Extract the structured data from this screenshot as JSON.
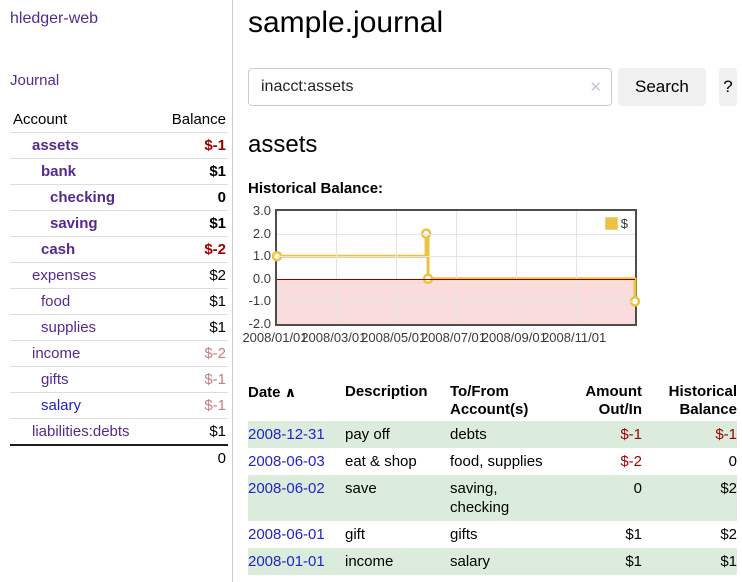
{
  "app_title": "hledger-web",
  "sidebar": {
    "journal_link": "Journal",
    "accounts_table": {
      "account_header": "Account",
      "balance_header": "Balance",
      "rows": [
        {
          "name": "assets",
          "balance": "$-1",
          "level": 1,
          "selected": true,
          "negative": true
        },
        {
          "name": "bank",
          "balance": "$1",
          "level": 2,
          "selected": true,
          "negative": false
        },
        {
          "name": "checking",
          "balance": "0",
          "level": 3,
          "selected": true,
          "negative": false
        },
        {
          "name": "saving",
          "balance": "$1",
          "level": 3,
          "selected": true,
          "negative": false
        },
        {
          "name": "cash",
          "balance": "$-2",
          "level": 2,
          "selected": true,
          "negative": true
        },
        {
          "name": "expenses",
          "balance": "$2",
          "level": 1,
          "selected": false,
          "negative": false
        },
        {
          "name": "food",
          "balance": "$1",
          "level": 2,
          "selected": false,
          "negative": false
        },
        {
          "name": "supplies",
          "balance": "$1",
          "level": 2,
          "selected": false,
          "negative": false
        },
        {
          "name": "income",
          "balance": "$-2",
          "level": 1,
          "selected": false,
          "negative": true
        },
        {
          "name": "gifts",
          "balance": "$-1",
          "level": 2,
          "selected": false,
          "negative": true
        },
        {
          "name": "salary",
          "balance": "$-1",
          "level": 2,
          "selected": false,
          "negative": true,
          "link_variant": "blue"
        },
        {
          "name": "liabilities:debts",
          "balance": "$1",
          "level": 1,
          "selected": false,
          "negative": false
        }
      ],
      "total": "0"
    }
  },
  "main": {
    "title": "sample.journal",
    "search": {
      "value": "inacct:assets",
      "clear_icon": "✕",
      "search_button": "Search",
      "help_button": "?"
    },
    "account_heading": "assets",
    "chart_label": "Historical Balance:"
  },
  "chart_data": {
    "type": "line",
    "title": "Historical Balance",
    "step": true,
    "series_name": "$",
    "x": [
      "2008-01-01",
      "2008-06-01",
      "2008-06-03",
      "2008-12-31"
    ],
    "y": [
      1,
      2,
      0,
      -1
    ],
    "xlim": [
      "2008-01-01",
      "2008-12-31"
    ],
    "ylim": [
      -2,
      3
    ],
    "y_ticks": [
      "3.0",
      "2.0",
      "1.0",
      "0.0",
      "-1.0",
      "-2.0"
    ],
    "y_tick_values": [
      3,
      2,
      1,
      0,
      -1,
      -2
    ],
    "x_tick_labels": [
      "2008/01/01",
      "2008/03/01",
      "2008/05/01",
      "2008/07/01",
      "2008/09/01",
      "2008/11/01"
    ],
    "x_tick_dates": [
      "2008-01-01",
      "2008-03-01",
      "2008-05-01",
      "2008-07-01",
      "2008-09-01",
      "2008-11-01"
    ],
    "line_color": "#edc240",
    "negative_fill": "#fbdcdc",
    "zero_line_color": "#8b0000",
    "grid": true,
    "legend": {
      "label": "$",
      "position": "top-right"
    }
  },
  "register": {
    "headers": {
      "date": "Date",
      "sort_icon": "∧",
      "description": "Description",
      "accounts": "To/From Account(s)",
      "amount": "Amount Out/In",
      "balance": "Historical Balance"
    },
    "rows": [
      {
        "date": "2008-12-31",
        "description": "pay off",
        "accounts": "debts",
        "amount": "$-1",
        "amount_negative": true,
        "balance": "$-1",
        "balance_negative": true
      },
      {
        "date": "2008-06-03",
        "description": "eat & shop",
        "accounts": "food, supplies",
        "amount": "$-2",
        "amount_negative": true,
        "balance": "0",
        "balance_negative": false
      },
      {
        "date": "2008-06-02",
        "description": "save",
        "accounts": "saving, checking",
        "amount": "0",
        "amount_negative": false,
        "balance": "$2",
        "balance_negative": false
      },
      {
        "date": "2008-06-01",
        "description": "gift",
        "accounts": "gifts",
        "amount": "$1",
        "amount_negative": false,
        "balance": "$2",
        "balance_negative": false
      },
      {
        "date": "2008-01-01",
        "description": "income",
        "accounts": "salary",
        "amount": "$1",
        "amount_negative": false,
        "balance": "$1",
        "balance_negative": false
      }
    ]
  }
}
